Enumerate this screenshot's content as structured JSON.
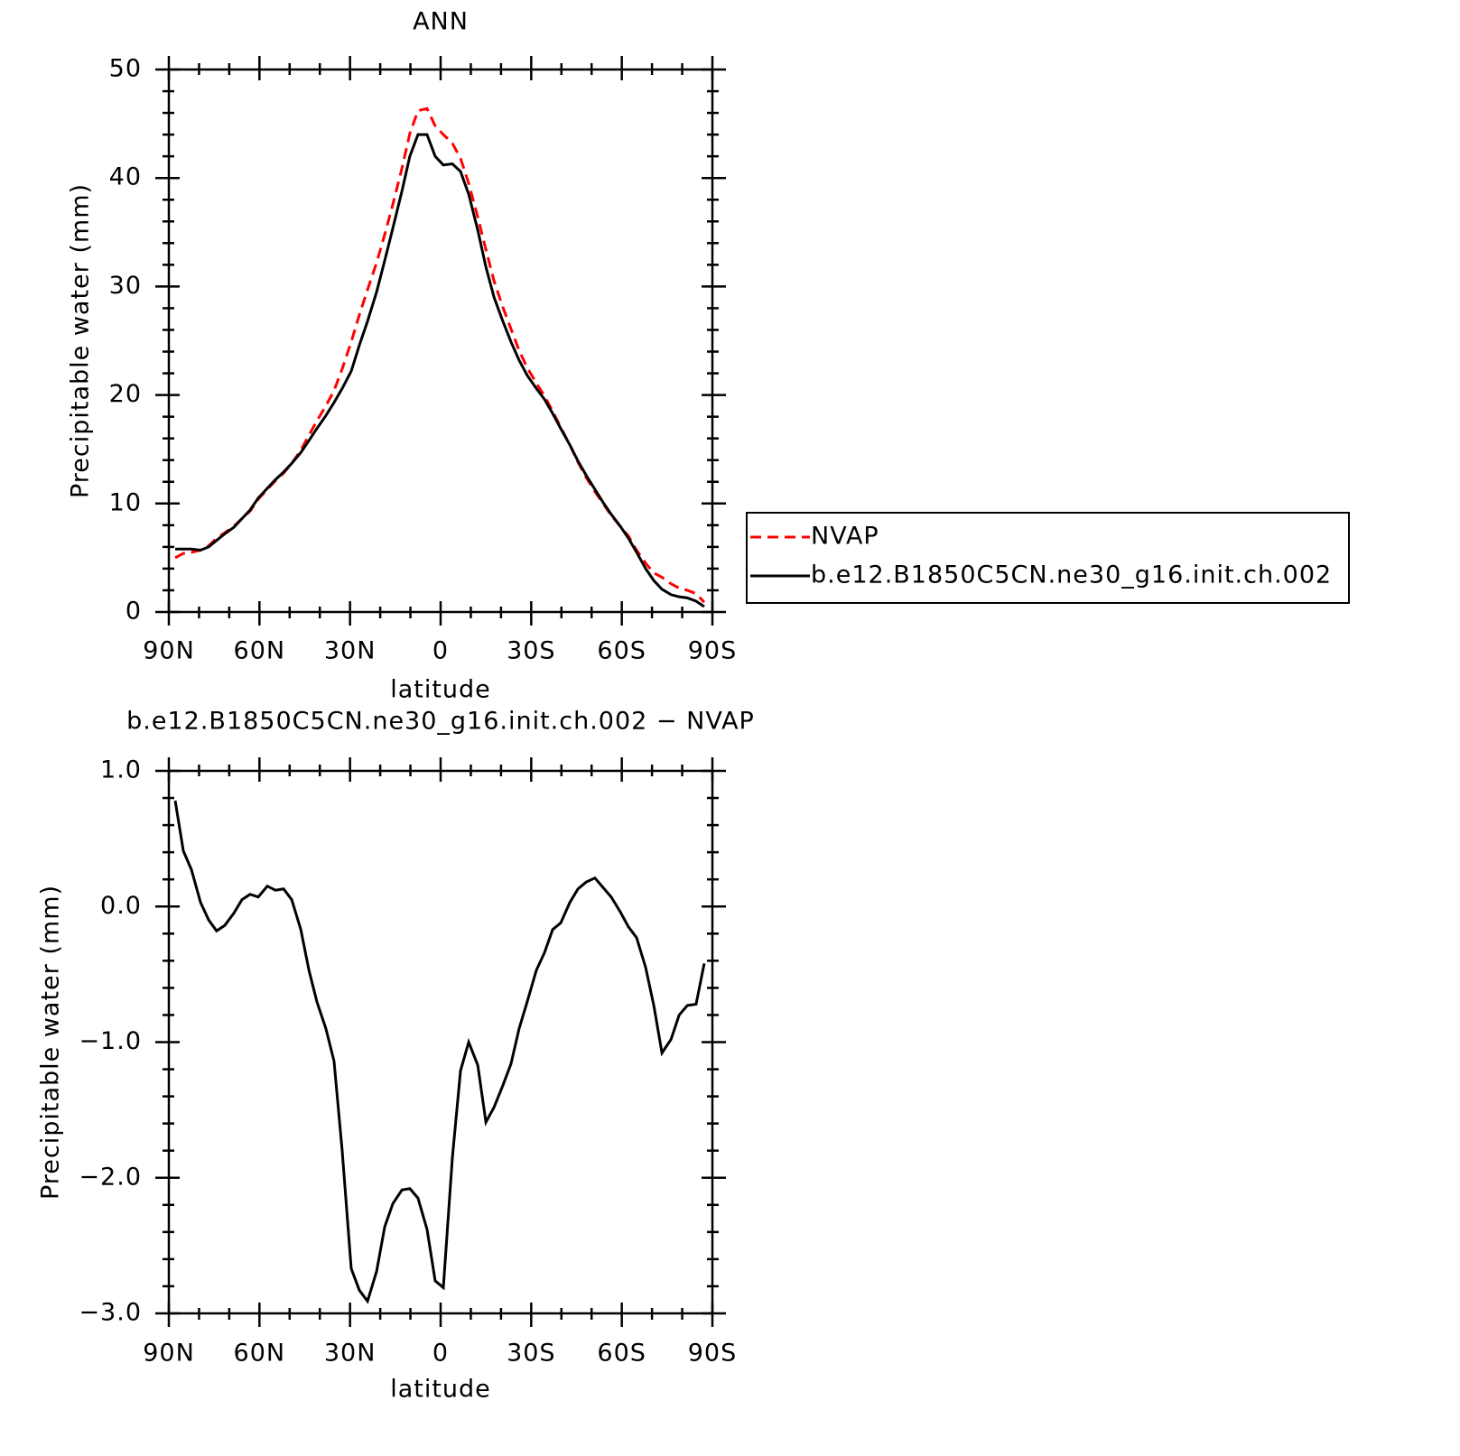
{
  "chart_data": [
    {
      "type": "line",
      "title": "ANN",
      "x_label": "latitude",
      "y_label": "Precipitable water (mm)",
      "x": [
        87.9,
        85.2,
        82.5,
        79.5,
        76.8,
        74.2,
        71.5,
        68.5,
        65.8,
        63.1,
        60.4,
        57.4,
        54.7,
        52.0,
        49.3,
        46.3,
        43.6,
        41.0,
        38.0,
        35.3,
        32.6,
        29.6,
        26.9,
        24.2,
        21.2,
        18.5,
        15.8,
        12.8,
        10.2,
        7.5,
        4.5,
        1.8,
        -0.9,
        -3.9,
        -6.6,
        -9.3,
        -12.3,
        -15.0,
        -17.7,
        -20.6,
        -23.3,
        -26.0,
        -28.7,
        -31.7,
        -34.4,
        -37.1,
        -39.8,
        -42.8,
        -45.5,
        -48.2,
        -51.1,
        -53.8,
        -56.5,
        -59.5,
        -62.2,
        -64.9,
        -67.9,
        -70.6,
        -73.3,
        -76.3,
        -79.0,
        -81.7,
        -84.6,
        -87.3
      ],
      "series": [
        {
          "name": "NVAP",
          "color": "#ff0000",
          "dashed": true,
          "values": [
            5.0,
            5.4,
            5.5,
            5.7,
            6.1,
            6.8,
            7.3,
            7.9,
            8.6,
            9.3,
            10.4,
            11.3,
            12.1,
            12.8,
            13.7,
            14.9,
            16.3,
            17.6,
            19.0,
            20.4,
            22.4,
            24.9,
            27.4,
            29.7,
            32.2,
            34.8,
            37.6,
            40.9,
            44.1,
            46.2,
            46.4,
            44.8,
            44.0,
            43.2,
            41.8,
            39.5,
            36.4,
            33.4,
            30.5,
            28.1,
            26.1,
            24.1,
            22.5,
            21.1,
            19.9,
            18.5,
            17.0,
            15.4,
            13.8,
            12.4,
            11.1,
            10.0,
            8.9,
            7.9,
            7.0,
            5.7,
            4.5,
            3.6,
            3.2,
            2.6,
            2.2,
            2.0,
            1.7,
            0.9
          ]
        },
        {
          "name": "b.e12.B1850C5CN.ne30_g16.init.ch.002",
          "color": "#000000",
          "dashed": false,
          "values": [
            5.8,
            5.8,
            5.8,
            5.7,
            6.0,
            6.6,
            7.2,
            7.8,
            8.6,
            9.4,
            10.5,
            11.4,
            12.2,
            12.9,
            13.7,
            14.7,
            15.8,
            16.9,
            18.1,
            19.3,
            20.6,
            22.2,
            24.6,
            26.8,
            29.5,
            32.4,
            35.4,
            38.8,
            42.0,
            44.0,
            44.0,
            42.0,
            41.2,
            41.3,
            40.6,
            38.5,
            35.2,
            31.8,
            29.0,
            26.8,
            24.9,
            23.2,
            21.8,
            20.6,
            19.6,
            18.3,
            16.9,
            15.4,
            13.9,
            12.6,
            11.3,
            10.1,
            9.0,
            7.9,
            6.8,
            5.5,
            4.0,
            2.9,
            2.1,
            1.6,
            1.4,
            1.3,
            1.0,
            0.5
          ]
        }
      ],
      "xlim": [
        90,
        -90
      ],
      "xticks": [
        {
          "value": 90,
          "label": "90N"
        },
        {
          "value": 60,
          "label": "60N"
        },
        {
          "value": 30,
          "label": "30N"
        },
        0,
        {
          "value": -30,
          "label": "30S"
        },
        {
          "value": -60,
          "label": "60S"
        },
        {
          "value": -90,
          "label": "90S"
        }
      ],
      "ylim": [
        0,
        50
      ],
      "yticks": [
        0,
        10,
        20,
        30,
        40,
        50
      ],
      "legend": "right"
    },
    {
      "type": "line",
      "title": "b.e12.B1850C5CN.ne30_g16.init.ch.002 − NVAP",
      "x_label": "latitude",
      "y_label": "Precipitable water (mm)",
      "x": [
        87.9,
        85.2,
        82.5,
        79.5,
        76.8,
        74.2,
        71.5,
        68.5,
        65.8,
        63.1,
        60.4,
        57.4,
        54.7,
        52.0,
        49.3,
        46.3,
        43.6,
        41.0,
        38.0,
        35.3,
        32.6,
        29.6,
        26.9,
        24.2,
        21.2,
        18.5,
        15.8,
        12.8,
        10.2,
        7.5,
        4.5,
        1.8,
        -0.9,
        -3.9,
        -6.6,
        -9.3,
        -12.3,
        -15.0,
        -17.7,
        -20.6,
        -23.3,
        -26.0,
        -28.7,
        -31.7,
        -34.4,
        -37.1,
        -39.8,
        -42.8,
        -45.5,
        -48.2,
        -51.1,
        -53.8,
        -56.5,
        -59.5,
        -62.2,
        -64.9,
        -67.9,
        -70.6,
        -73.3,
        -76.3,
        -79.0,
        -81.7,
        -84.6,
        -87.3
      ],
      "color": "#000000",
      "values": [
        0.78,
        0.41,
        0.27,
        0.03,
        -0.1,
        -0.18,
        -0.14,
        -0.05,
        0.05,
        0.09,
        0.07,
        0.15,
        0.12,
        0.13,
        0.05,
        -0.17,
        -0.47,
        -0.7,
        -0.9,
        -1.14,
        -1.8,
        -2.67,
        -2.83,
        -2.91,
        -2.69,
        -2.36,
        -2.19,
        -2.09,
        -2.08,
        -2.15,
        -2.38,
        -2.76,
        -2.81,
        -1.85,
        -1.21,
        -1.0,
        -1.17,
        -1.59,
        -1.48,
        -1.32,
        -1.16,
        -0.9,
        -0.7,
        -0.47,
        -0.34,
        -0.17,
        -0.12,
        0.03,
        0.13,
        0.18,
        0.21,
        0.14,
        0.07,
        -0.04,
        -0.15,
        -0.23,
        -0.45,
        -0.73,
        -1.08,
        -0.98,
        -0.8,
        -0.73,
        -0.72,
        -0.42
      ],
      "xlim": [
        90,
        -90
      ],
      "xticks": [
        {
          "value": 90,
          "label": "90N"
        },
        {
          "value": 60,
          "label": "60N"
        },
        {
          "value": 30,
          "label": "30N"
        },
        0,
        {
          "value": -30,
          "label": "30S"
        },
        {
          "value": -60,
          "label": "60S"
        },
        {
          "value": -90,
          "label": "90S"
        }
      ],
      "ylim": [
        -3.0,
        1.0
      ],
      "yticks": [
        {
          "value": -3.0,
          "label": "−3.0"
        },
        {
          "value": -2.0,
          "label": "−2.0"
        },
        {
          "value": -1.0,
          "label": "−1.0"
        },
        {
          "value": 0.0,
          "label": "0.0"
        },
        {
          "value": 1.0,
          "label": "1.0"
        }
      ]
    }
  ]
}
